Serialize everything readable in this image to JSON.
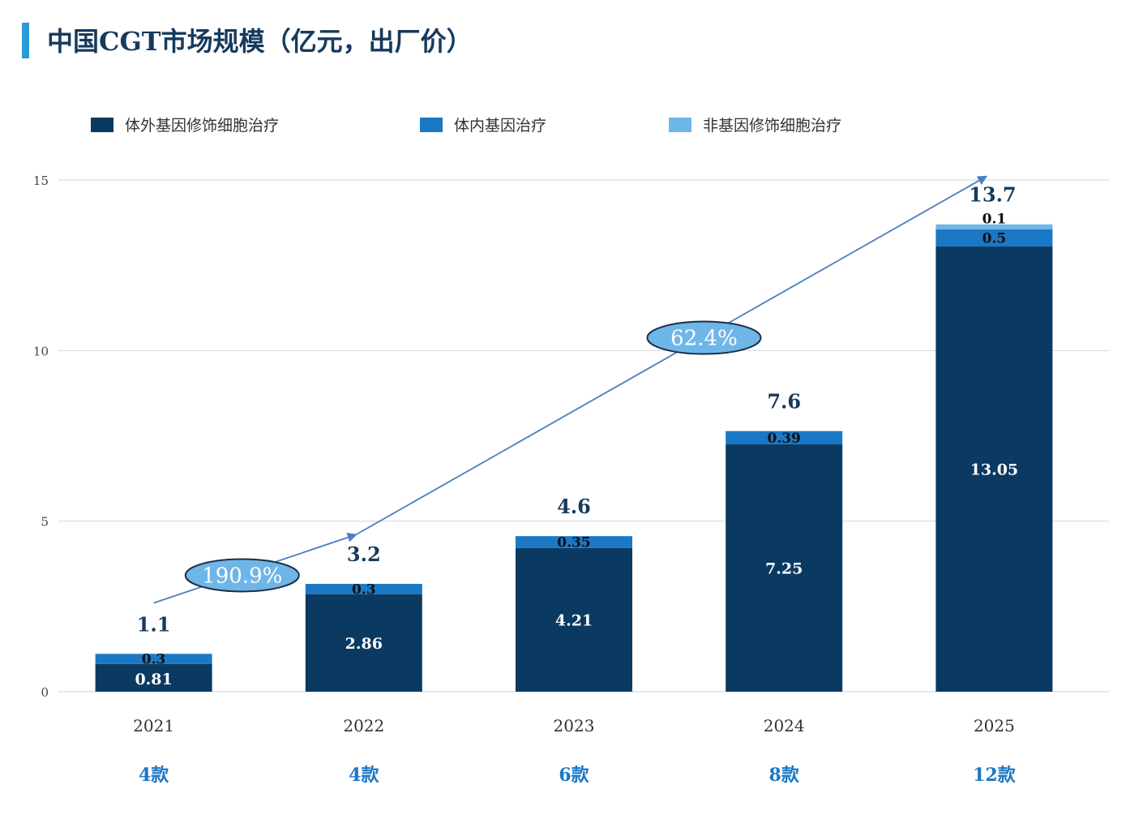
{
  "title": "中国CGT市场规模（亿元，出厂价）",
  "colors": {
    "title_bar": "#2b9ad6",
    "series": [
      "#0a3a62",
      "#1b78c4",
      "#6fb6e8"
    ],
    "grid": "#d0dcea",
    "axis_text": "#444444",
    "total_text": "#163a5c",
    "count_text": "#1b78c4",
    "trend_line": "#4a7fc0",
    "cagr_fill": "#6fb6e8"
  },
  "chart_data": {
    "type": "bar",
    "stacked": true,
    "categories": [
      "2021",
      "2022",
      "2023",
      "2024",
      "2025"
    ],
    "series": [
      {
        "name": "体外基因修饰细胞治疗",
        "values": [
          0.81,
          2.86,
          4.21,
          7.25,
          13.05
        ],
        "labels": [
          "0.81",
          "2.86",
          "4.21",
          "7.25",
          "13.05"
        ]
      },
      {
        "name": "体内基因治疗",
        "values": [
          0.3,
          0.3,
          0.35,
          0.39,
          0.5
        ],
        "labels": [
          "0.3",
          "0.3",
          "0.35",
          "0.39",
          "0.5"
        ]
      },
      {
        "name": "非基因修饰细胞治疗",
        "values": [
          0,
          0,
          0,
          0,
          0.15
        ],
        "labels": [
          "",
          "",
          "",
          "",
          "0.1"
        ]
      }
    ],
    "totals": [
      "1.1",
      "3.2",
      "4.6",
      "7.6",
      "13.7"
    ],
    "product_counts": [
      "4款",
      "4款",
      "6款",
      "8款",
      "12款"
    ],
    "yticks": [
      "0",
      "5",
      "10",
      "15"
    ],
    "ylim": [
      0,
      15
    ],
    "grid": true,
    "legend_position": "top",
    "growth_annotations": [
      {
        "label": "190.9%",
        "from_year": "2021",
        "to_year": "2022",
        "from_value": 2.6,
        "to_value": 4.6
      },
      {
        "label": "62.4%",
        "from_year": "2022",
        "to_year": "2025",
        "from_value": 4.6,
        "to_value": 15.1
      }
    ]
  }
}
